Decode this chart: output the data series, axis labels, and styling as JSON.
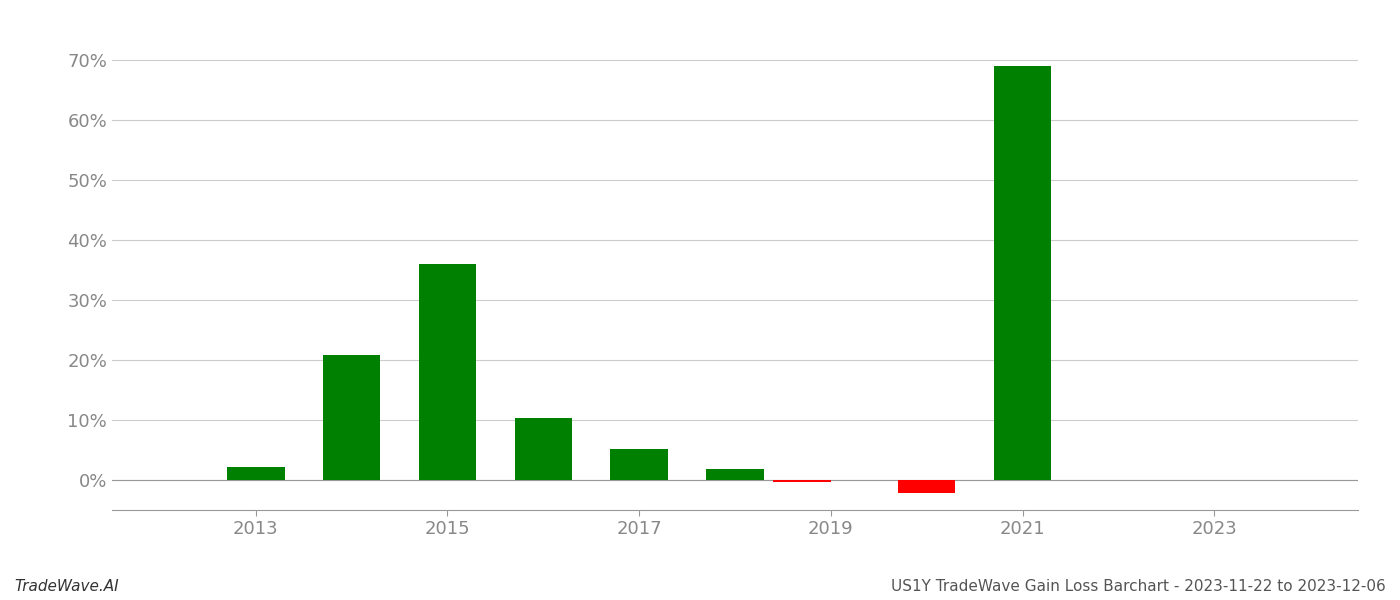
{
  "years": [
    2013,
    2014,
    2015,
    2016,
    2017,
    2018,
    2018.7,
    2020,
    2021
  ],
  "values": [
    0.022,
    0.208,
    0.36,
    0.103,
    0.052,
    0.018,
    -0.003,
    -0.022,
    0.69
  ],
  "colors": [
    "#008000",
    "#008000",
    "#008000",
    "#008000",
    "#008000",
    "#008000",
    "#ff0000",
    "#ff0000",
    "#008000"
  ],
  "title": "US1Y TradeWave Gain Loss Barchart - 2023-11-22 to 2023-12-06",
  "watermark": "TradeWave.AI",
  "xlim": [
    2011.5,
    2024.5
  ],
  "ylim": [
    -0.05,
    0.75
  ],
  "xticks": [
    2013,
    2015,
    2017,
    2019,
    2021,
    2023
  ],
  "yticks": [
    0.0,
    0.1,
    0.2,
    0.3,
    0.4,
    0.5,
    0.6,
    0.7
  ],
  "ytick_labels": [
    "0%",
    "10%",
    "20%",
    "30%",
    "40%",
    "50%",
    "60%",
    "70%"
  ],
  "bar_width": 0.6,
  "background_color": "#ffffff",
  "grid_color": "#cccccc",
  "axis_color": "#999999",
  "tick_color": "#888888",
  "title_fontsize": 11,
  "watermark_fontsize": 11
}
